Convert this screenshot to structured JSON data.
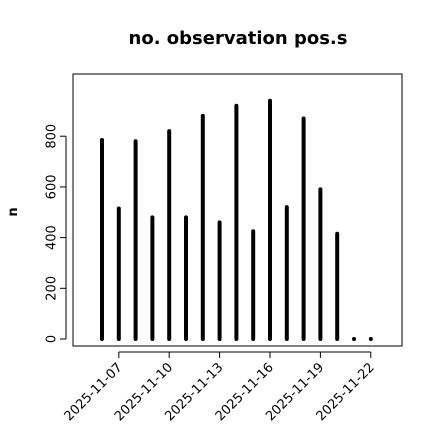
{
  "chart_data": {
    "type": "bar",
    "title": "no. observation pos.s",
    "xlabel": "",
    "ylabel": "n",
    "ylim": [
      0,
      1000
    ],
    "yticks": [
      0,
      200,
      400,
      600,
      800
    ],
    "grid": false,
    "legend": "none",
    "categories": [
      "2025-11-06",
      "2025-11-07",
      "2025-11-08",
      "2025-11-09",
      "2025-11-10",
      "2025-11-11",
      "2025-11-12",
      "2025-11-13",
      "2025-11-14",
      "2025-11-15",
      "2025-11-16",
      "2025-11-17",
      "2025-11-18",
      "2025-11-19",
      "2025-11-20",
      "2025-11-21",
      "2025-11-22"
    ],
    "values": [
      785,
      515,
      780,
      480,
      820,
      480,
      880,
      460,
      920,
      425,
      940,
      520,
      870,
      590,
      415,
      0,
      0
    ],
    "xtick_labels": [
      "2025-11-07",
      "2025-11-10",
      "2025-11-13",
      "2025-11-16",
      "2025-11-19",
      "2025-11-22"
    ],
    "xtick_colors": [
      "#000000",
      "#000000",
      "#228B22",
      "#000000",
      "#000000",
      "#000000"
    ],
    "bar_color": "#000000"
  }
}
